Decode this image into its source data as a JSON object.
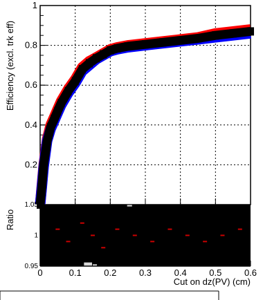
{
  "chart_data": [
    {
      "type": "line",
      "panel": "main",
      "ylabel": "Efficiency (excl. trk eff)",
      "xlim": [
        0,
        0.6
      ],
      "ylim": [
        0,
        1.0
      ],
      "grid": true,
      "y_ticks": [
        {
          "value": 0.2,
          "label": "0.2"
        },
        {
          "value": 0.4,
          "label": "0.4"
        },
        {
          "value": 0.6,
          "label": "0.6"
        },
        {
          "value": 0.8,
          "label": "0.8"
        },
        {
          "value": 1.0,
          "label": "1"
        }
      ],
      "x": [
        0.0,
        0.005,
        0.01,
        0.02,
        0.03,
        0.04,
        0.05,
        0.06,
        0.08,
        0.1,
        0.12,
        0.14,
        0.16,
        0.18,
        0.2,
        0.22,
        0.25,
        0.3,
        0.35,
        0.4,
        0.45,
        0.5,
        0.55,
        0.6
      ],
      "series": [
        {
          "color": "#ff0000",
          "values": [
            0.0,
            0.1,
            0.2,
            0.33,
            0.4,
            0.44,
            0.48,
            0.52,
            0.58,
            0.63,
            0.69,
            0.72,
            0.74,
            0.76,
            0.78,
            0.79,
            0.8,
            0.81,
            0.82,
            0.83,
            0.84,
            0.86,
            0.87,
            0.88
          ]
        },
        {
          "color": "#0000ff",
          "values": [
            0.0,
            0.09,
            0.19,
            0.32,
            0.38,
            0.42,
            0.46,
            0.5,
            0.56,
            0.61,
            0.67,
            0.7,
            0.73,
            0.75,
            0.77,
            0.78,
            0.79,
            0.8,
            0.81,
            0.82,
            0.83,
            0.84,
            0.85,
            0.86
          ]
        },
        {
          "color": "#000000",
          "values": [
            0.0,
            0.09,
            0.2,
            0.32,
            0.39,
            0.43,
            0.47,
            0.51,
            0.57,
            0.62,
            0.68,
            0.71,
            0.735,
            0.755,
            0.775,
            0.785,
            0.795,
            0.805,
            0.815,
            0.825,
            0.835,
            0.85,
            0.86,
            0.87
          ]
        }
      ]
    },
    {
      "type": "scatter",
      "panel": "ratio",
      "ylabel": "Ratio",
      "xlabel": "Cut on dz(PV) (cm)",
      "xlim": [
        0,
        0.6
      ],
      "ylim": [
        0.95,
        1.05
      ],
      "grid": true,
      "y_ticks": [
        {
          "value": 0.95,
          "label": "0.95"
        },
        {
          "value": 1.0,
          "label": "1"
        },
        {
          "value": 1.05,
          "label": "1.05"
        }
      ],
      "x_ticks": [
        {
          "value": 0.0,
          "label": "0"
        },
        {
          "value": 0.1,
          "label": "0.1"
        },
        {
          "value": 0.2,
          "label": "0.2"
        },
        {
          "value": 0.3,
          "label": "0.3"
        },
        {
          "value": 0.4,
          "label": "0.4"
        },
        {
          "value": 0.5,
          "label": "0.5"
        },
        {
          "value": 0.6,
          "label": "0.6"
        }
      ],
      "fill_color": "#000000",
      "point_color": "#cc0000",
      "x": [
        0.05,
        0.08,
        0.12,
        0.15,
        0.18,
        0.22,
        0.27,
        0.32,
        0.37,
        0.42,
        0.47,
        0.52,
        0.57
      ],
      "values": [
        1.01,
        0.99,
        1.02,
        1.0,
        0.98,
        1.01,
        1.0,
        0.99,
        1.01,
        1.0,
        0.99,
        1.0,
        1.01
      ],
      "gaps": [
        {
          "x0": 0.125,
          "x1": 0.148,
          "y0": 0.95,
          "y1": 0.956
        },
        {
          "x0": 0.15,
          "x1": 0.162,
          "y0": 0.95,
          "y1": 0.953
        },
        {
          "x0": 0.248,
          "x1": 0.262,
          "y0": 1.047,
          "y1": 1.05
        }
      ]
    }
  ]
}
